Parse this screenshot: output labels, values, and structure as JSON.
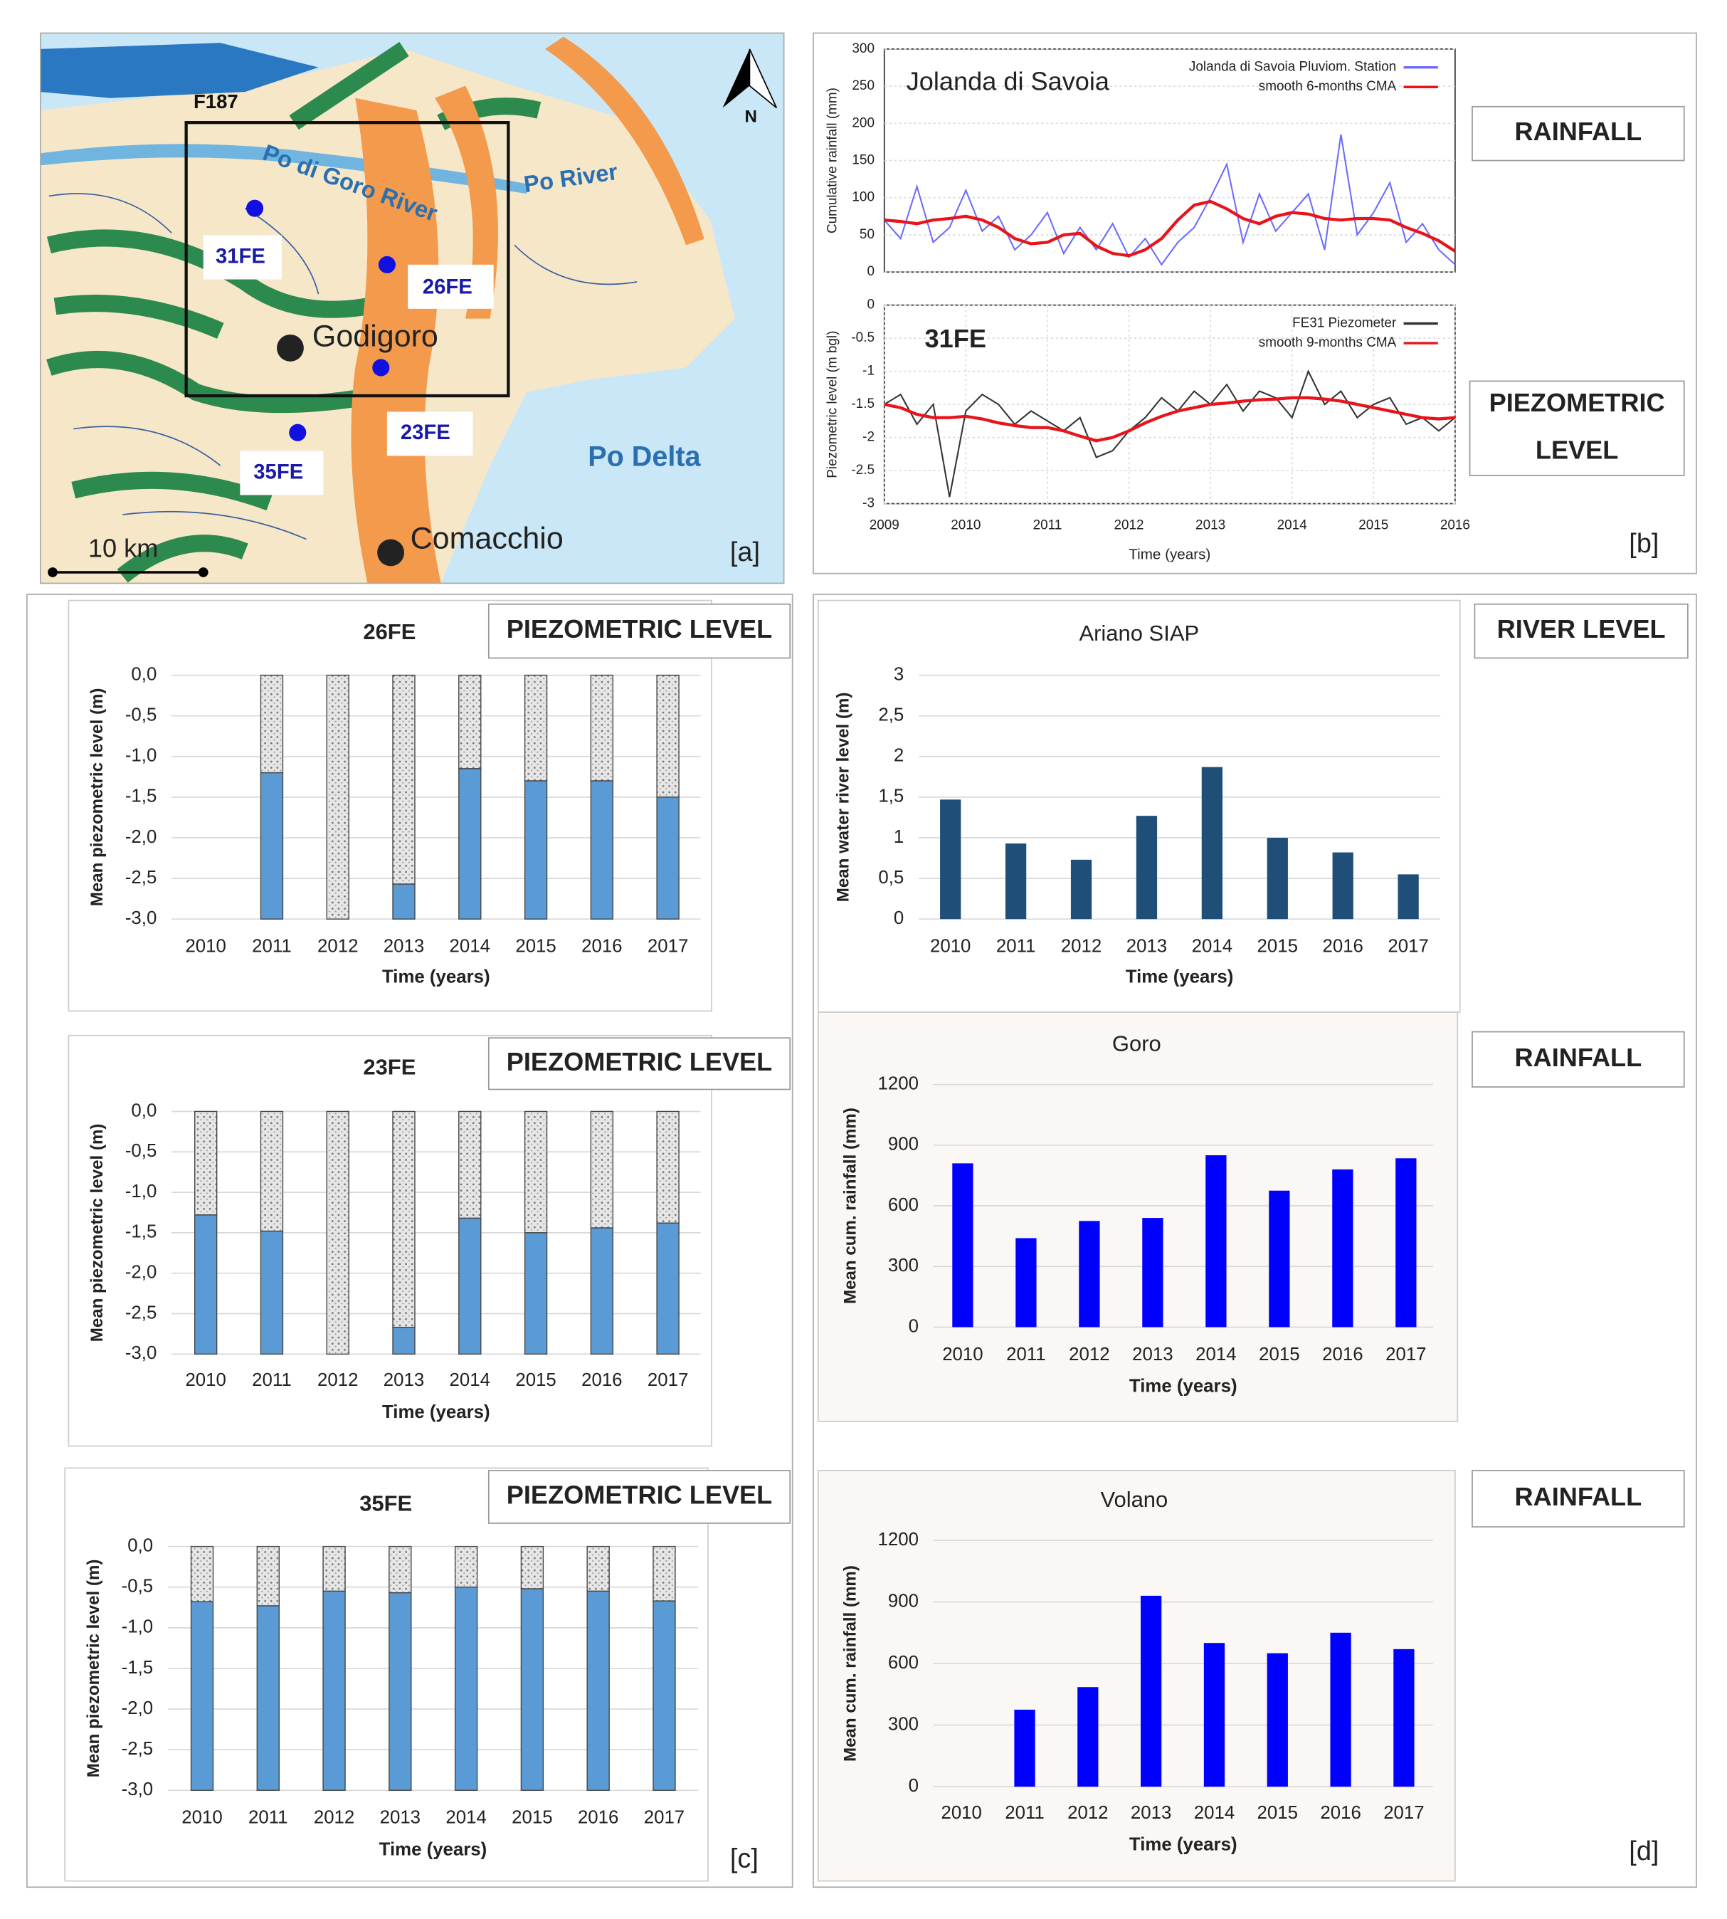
{
  "map": {
    "labels": [
      "F187",
      "Po di Goro River",
      "Po River",
      "31FE",
      "26FE",
      "Godigoro",
      "23FE",
      "35FE",
      "Po Delta",
      "Comacchio",
      "10 km",
      "N"
    ]
  },
  "panel_labels": [
    "[a]",
    "[b]",
    "[c]",
    "[d]"
  ],
  "chart_data": [
    {
      "type": "line",
      "annotation": "Jolanda di Savoia",
      "y_label": "Cumulative rainfall (mm)",
      "side_label": "RAINFALL",
      "x": [
        2009,
        2009.2,
        2009.4,
        2009.6,
        2009.8,
        2010,
        2010.2,
        2010.4,
        2010.6,
        2010.8,
        2011,
        2011.2,
        2011.4,
        2011.6,
        2011.8,
        2012,
        2012.2,
        2012.4,
        2012.6,
        2012.8,
        2013,
        2013.2,
        2013.4,
        2013.6,
        2013.8,
        2014,
        2014.2,
        2014.4,
        2014.6,
        2014.8,
        2015,
        2015.2,
        2015.4,
        2015.6,
        2015.8,
        2016
      ],
      "xlim": [
        2009,
        2016
      ],
      "ylim": [
        0,
        300
      ],
      "yticks": [
        0,
        50,
        100,
        150,
        200,
        250,
        300
      ],
      "series": [
        {
          "name": "Jolanda di Savoia Pluviom. Station",
          "color": "#6b6bff",
          "values": [
            70,
            45,
            115,
            40,
            60,
            110,
            55,
            75,
            30,
            50,
            80,
            25,
            60,
            30,
            65,
            20,
            45,
            10,
            40,
            60,
            100,
            145,
            40,
            105,
            55,
            80,
            105,
            30,
            185,
            50,
            80,
            120,
            40,
            65,
            30,
            10
          ]
        },
        {
          "name": "smooth 6-months CMA",
          "color": "#e8141b",
          "values": [
            70,
            68,
            65,
            70,
            72,
            75,
            70,
            60,
            45,
            38,
            40,
            50,
            52,
            35,
            25,
            22,
            30,
            45,
            70,
            90,
            95,
            85,
            72,
            65,
            75,
            80,
            78,
            72,
            70,
            72,
            72,
            70,
            60,
            52,
            42,
            28
          ]
        }
      ]
    },
    {
      "type": "line",
      "annotation": "31FE",
      "y_label": "Piezometric level (m bgl)",
      "x_label": "Time (years)",
      "side_label": [
        "PIEZOMETRIC",
        "LEVEL"
      ],
      "x": [
        2009,
        2009.2,
        2009.4,
        2009.6,
        2009.8,
        2010,
        2010.2,
        2010.4,
        2010.6,
        2010.8,
        2011,
        2011.2,
        2011.4,
        2011.6,
        2011.8,
        2012,
        2012.2,
        2012.4,
        2012.6,
        2012.8,
        2013,
        2013.2,
        2013.4,
        2013.6,
        2013.8,
        2014,
        2014.2,
        2014.4,
        2014.6,
        2014.8,
        2015,
        2015.2,
        2015.4,
        2015.6,
        2015.8,
        2016
      ],
      "xlim": [
        2009,
        2016
      ],
      "xticks": [
        2009,
        2010,
        2011,
        2012,
        2013,
        2014,
        2015,
        2016
      ],
      "ylim": [
        -3,
        0
      ],
      "yticks": [
        0,
        -0.5,
        -1,
        -1.5,
        -2,
        -2.5,
        -3
      ],
      "series": [
        {
          "name": "FE31 Piezometer",
          "color": "#333333",
          "values": [
            -1.5,
            -1.35,
            -1.8,
            -1.5,
            -2.9,
            -1.6,
            -1.35,
            -1.5,
            -1.8,
            -1.6,
            -1.75,
            -1.9,
            -1.7,
            -2.3,
            -2.2,
            -1.9,
            -1.7,
            -1.4,
            -1.6,
            -1.3,
            -1.5,
            -1.2,
            -1.6,
            -1.3,
            -1.4,
            -1.7,
            -1.0,
            -1.5,
            -1.3,
            -1.7,
            -1.5,
            -1.4,
            -1.8,
            -1.7,
            -1.9,
            -1.7
          ]
        },
        {
          "name": "smooth 9-months CMA",
          "color": "#e8141b",
          "values": [
            -1.5,
            -1.55,
            -1.65,
            -1.7,
            -1.7,
            -1.68,
            -1.72,
            -1.78,
            -1.82,
            -1.85,
            -1.85,
            -1.9,
            -1.98,
            -2.05,
            -2.0,
            -1.9,
            -1.78,
            -1.68,
            -1.6,
            -1.55,
            -1.5,
            -1.48,
            -1.45,
            -1.43,
            -1.42,
            -1.4,
            -1.4,
            -1.42,
            -1.45,
            -1.5,
            -1.55,
            -1.6,
            -1.65,
            -1.7,
            -1.72,
            -1.7
          ]
        }
      ]
    },
    {
      "type": "bar",
      "title": "26FE",
      "side_label": "PIEZOMETRIC LEVEL",
      "y_label": "Mean piezometric level (m)",
      "x_label": "Time (years)",
      "color": "#dcdcdc",
      "fill_below": "#5b9bd5",
      "categories": [
        "2010",
        "2011",
        "2012",
        "2013",
        "2014",
        "2015",
        "2016",
        "2017"
      ],
      "values": [
        null,
        -1.2,
        -3.0,
        -2.57,
        -1.15,
        -1.3,
        -1.3,
        -1.5
      ],
      "ylim": [
        -3,
        0
      ],
      "yticks": [
        {
          "value": 0,
          "label": "0,0"
        },
        {
          "value": -0.5,
          "label": "-0,5"
        },
        {
          "value": -1,
          "label": "-1,0"
        },
        {
          "value": -1.5,
          "label": "-1,5"
        },
        {
          "value": -2,
          "label": "-2,0"
        },
        {
          "value": -2.5,
          "label": "-2,5"
        },
        {
          "value": -3,
          "label": "-3,0"
        }
      ]
    },
    {
      "type": "bar",
      "title": "23FE",
      "side_label": "PIEZOMETRIC LEVEL",
      "y_label": "Mean piezometric level (m)",
      "x_label": "Time (years)",
      "color": "#dcdcdc",
      "fill_below": "#5b9bd5",
      "categories": [
        "2010",
        "2011",
        "2012",
        "2013",
        "2014",
        "2015",
        "2016",
        "2017"
      ],
      "values": [
        -1.28,
        -1.48,
        -3.0,
        -2.67,
        -1.32,
        -1.5,
        -1.44,
        -1.38
      ],
      "ylim": [
        -3,
        0
      ],
      "yticks": [
        {
          "value": 0,
          "label": "0,0"
        },
        {
          "value": -0.5,
          "label": "-0,5"
        },
        {
          "value": -1,
          "label": "-1,0"
        },
        {
          "value": -1.5,
          "label": "-1,5"
        },
        {
          "value": -2,
          "label": "-2,0"
        },
        {
          "value": -2.5,
          "label": "-2,5"
        },
        {
          "value": -3,
          "label": "-3,0"
        }
      ]
    },
    {
      "type": "bar",
      "title": "35FE",
      "side_label": "PIEZOMETRIC LEVEL",
      "y_label": "Mean piezometric level (m)",
      "x_label": "Time (years)",
      "color": "#dcdcdc",
      "fill_below": "#5b9bd5",
      "categories": [
        "2010",
        "2011",
        "2012",
        "2013",
        "2014",
        "2015",
        "2016",
        "2017"
      ],
      "values": [
        -0.68,
        -0.73,
        -0.55,
        -0.57,
        -0.5,
        -0.52,
        -0.55,
        -0.67
      ],
      "ylim": [
        -3,
        0
      ],
      "yticks": [
        {
          "value": 0,
          "label": "0,0"
        },
        {
          "value": -0.5,
          "label": "-0,5"
        },
        {
          "value": -1,
          "label": "-1,0"
        },
        {
          "value": -1.5,
          "label": "-1,5"
        },
        {
          "value": -2,
          "label": "-2,0"
        },
        {
          "value": -2.5,
          "label": "-2,5"
        },
        {
          "value": -3,
          "label": "-3,0"
        }
      ]
    },
    {
      "type": "bar",
      "title": "Ariano SIAP",
      "side_label": "RIVER LEVEL",
      "y_label": "Mean water river level (m)",
      "x_label": "Time (years)",
      "color": "#1f4e79",
      "categories": [
        "2010",
        "2011",
        "2012",
        "2013",
        "2014",
        "2015",
        "2016",
        "2017"
      ],
      "values": [
        1.47,
        0.93,
        0.73,
        1.27,
        1.87,
        1.0,
        0.82,
        0.55
      ],
      "ylim": [
        0,
        3
      ],
      "yticks": [
        0,
        {
          "value": 0.5,
          "label": "0,5"
        },
        1,
        {
          "value": 1.5,
          "label": "1,5"
        },
        2,
        {
          "value": 2.5,
          "label": "2,5"
        },
        3
      ]
    },
    {
      "type": "bar",
      "title": "Goro",
      "side_label": "RAINFALL",
      "y_label": "Mean cum. rainfall (mm)",
      "x_label": "Time (years)",
      "color": "#0000ff",
      "categories": [
        "2010",
        "2011",
        "2012",
        "2013",
        "2014",
        "2015",
        "2016",
        "2017"
      ],
      "values": [
        810,
        440,
        525,
        540,
        850,
        675,
        780,
        835
      ],
      "ylim": [
        0,
        1200
      ],
      "yticks": [
        0,
        300,
        600,
        900,
        1200
      ]
    },
    {
      "type": "bar",
      "title": "Volano",
      "side_label": "RAINFALL",
      "y_label": "Mean cum. rainfall (mm)",
      "x_label": "Time (years)",
      "color": "#0000ff",
      "categories": [
        "2010",
        "2011",
        "2012",
        "2013",
        "2014",
        "2015",
        "2016",
        "2017"
      ],
      "values": [
        null,
        375,
        485,
        930,
        700,
        650,
        750,
        670
      ],
      "ylim": [
        0,
        1200
      ],
      "yticks": [
        0,
        300,
        600,
        900,
        1200
      ]
    }
  ]
}
